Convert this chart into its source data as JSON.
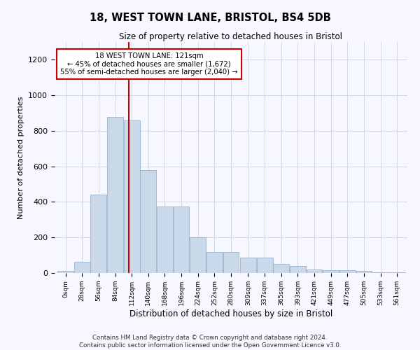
{
  "title": "18, WEST TOWN LANE, BRISTOL, BS4 5DB",
  "subtitle": "Size of property relative to detached houses in Bristol",
  "xlabel": "Distribution of detached houses by size in Bristol",
  "ylabel": "Number of detached properties",
  "bar_color": "#c9d9ea",
  "bar_edge_color": "#8aaac8",
  "property_line_x": 121,
  "annotation_line1": "18 WEST TOWN LANE: 121sqm",
  "annotation_line2": "← 45% of detached houses are smaller (1,672)",
  "annotation_line3": "55% of semi-detached houses are larger (2,040) →",
  "categories": [
    "0sqm",
    "28sqm",
    "56sqm",
    "84sqm",
    "112sqm",
    "140sqm",
    "168sqm",
    "196sqm",
    "224sqm",
    "252sqm",
    "280sqm",
    "309sqm",
    "337sqm",
    "365sqm",
    "393sqm",
    "421sqm",
    "449sqm",
    "477sqm",
    "505sqm",
    "533sqm",
    "561sqm"
  ],
  "bin_left_edges": [
    0,
    28,
    56,
    84,
    112,
    140,
    168,
    196,
    224,
    252,
    280,
    309,
    337,
    365,
    393,
    421,
    449,
    477,
    505,
    533,
    561
  ],
  "values": [
    10,
    65,
    440,
    880,
    860,
    580,
    375,
    375,
    200,
    120,
    120,
    85,
    85,
    50,
    40,
    20,
    15,
    15,
    10,
    3,
    2
  ],
  "ylim": [
    0,
    1300
  ],
  "yticks": [
    0,
    200,
    400,
    600,
    800,
    1000,
    1200
  ],
  "footer_line1": "Contains HM Land Registry data © Crown copyright and database right 2024.",
  "footer_line2": "Contains public sector information licensed under the Open Government Licence v3.0.",
  "background_color": "#f7f7ff",
  "grid_color": "#d0d8e8",
  "red_line_color": "#cc0000"
}
